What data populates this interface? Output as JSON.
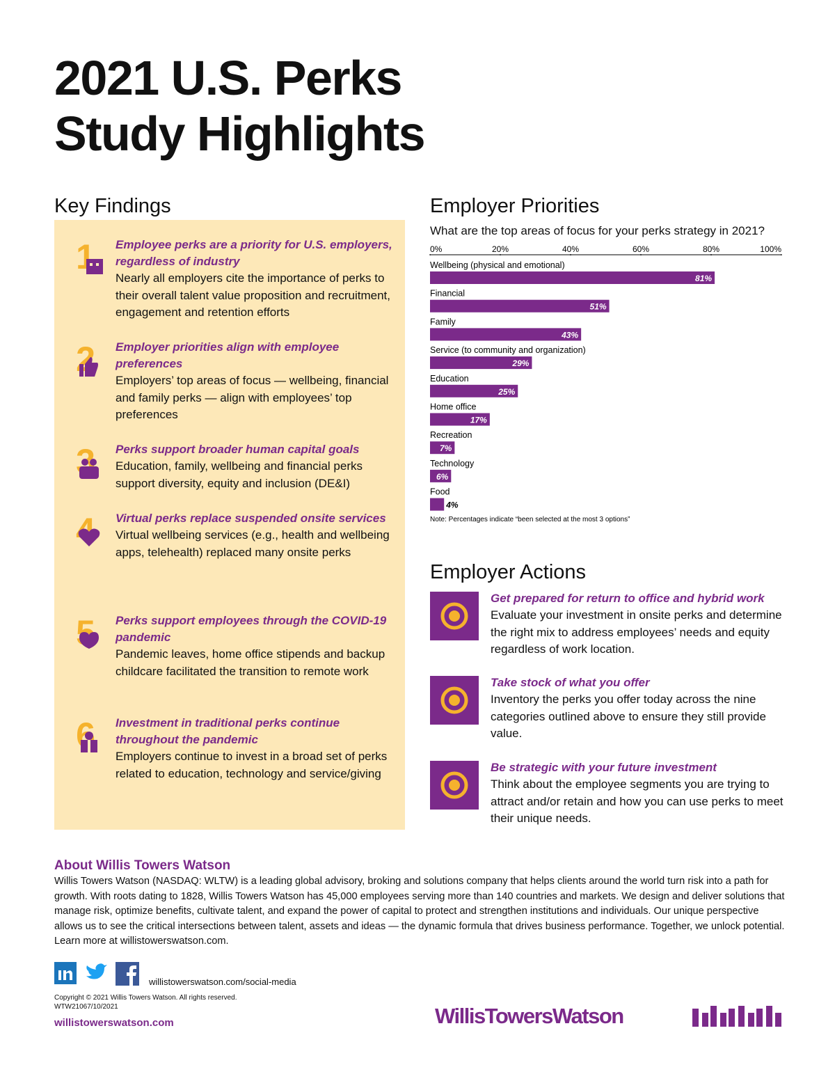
{
  "header": {
    "title": [
      "2021 U.S. Perks",
      "Study Highlights"
    ]
  },
  "key_findings": {
    "title": "Key Findings",
    "items": [
      {
        "number": "1",
        "heading": "Employee perks are a priority for U.S. employers, regardless of industry",
        "body": "Nearly all employers cite the importance of perks to their overall talent value proposition and recruitment, engagement and retention efforts"
      },
      {
        "number": "2",
        "heading": "Employer priorities align with employee preferences",
        "body": "Employers’ top areas of focus — wellbeing, financial and family perks — align with employees’ top preferences"
      },
      {
        "number": "3",
        "heading": "Perks support broader human capital goals",
        "body": "Education, family, wellbeing and financial perks support diversity, equity and inclusion (DE&I)"
      },
      {
        "number": "4",
        "heading": "Virtual perks replace suspended onsite services",
        "body": "Virtual wellbeing services (e.g., health and wellbeing apps, telehealth) replaced many onsite perks"
      },
      {
        "number": "5",
        "heading": "Perks support employees through the COVID-19 pandemic",
        "body": "Pandemic leaves, home office stipends and backup childcare facilitated the transition to remote work"
      },
      {
        "number": "6",
        "heading": "Investment in traditional perks continue throughout the pandemic",
        "body": "Employers continue to invest in a broad set of perks related to education, technology and service/giving"
      }
    ]
  },
  "employer_priorities": {
    "title": "Employer Priorities"
  },
  "chart_data": {
    "type": "bar",
    "orientation": "horizontal",
    "title": "What are the top areas of focus for your perks strategy in 2021?",
    "categories": [
      "Wellbeing (physical and emotional)",
      "Financial",
      "Family",
      "Service (to community and organization)",
      "Education",
      "Home office",
      "Recreation",
      "Technology",
      "Food"
    ],
    "values": [
      81,
      51,
      43,
      29,
      25,
      17,
      7,
      6,
      4
    ],
    "value_labels": [
      "81%",
      "51%",
      "43%",
      "29%",
      "25%",
      "17%",
      "7%",
      "6%",
      "4%"
    ],
    "color": "#7b2a8a",
    "xlim": [
      0,
      100
    ],
    "xticks": [
      {
        "value": 0,
        "label": "0%"
      },
      {
        "value": 20,
        "label": "20%"
      },
      {
        "value": 40,
        "label": "40%"
      },
      {
        "value": 60,
        "label": "60%"
      },
      {
        "value": 80,
        "label": "80%"
      },
      {
        "value": 100,
        "label": "100%"
      }
    ],
    "note": "Note: Percentages indicate “been selected at the most 3 options”"
  },
  "employer_actions": {
    "title": "Employer Actions",
    "items": [
      {
        "heading": "Get prepared for return to office and hybrid work",
        "body": "Evaluate your investment in onsite perks and determine the right mix to address employees’ needs and equity regardless of work location."
      },
      {
        "heading": "Take stock of what you offer",
        "body": "Inventory the perks you offer today across the nine categories outlined above to ensure they still provide value."
      },
      {
        "heading": "Be strategic with your future investment",
        "body": "Think about the employee segments you are trying to attract and/or retain and how you can use perks to meet their unique needs."
      }
    ]
  },
  "about": {
    "title": "About Willis Towers Watson",
    "body": "Willis Towers Watson (NASDAQ: WLTW) is a leading global advisory, broking and solutions company that helps clients around the world turn risk into a path for growth. With roots dating to 1828, Willis Towers Watson has 45,000 employees serving more than 140 countries and markets. We design and deliver solutions that manage risk, optimize benefits, cultivate talent, and expand the power of capital to protect and strengthen institutions and individuals. Our unique perspective allows us to see the critical intersections between talent, assets and ideas — the dynamic formula that drives business performance. Together, we unlock potential. Learn more at willistowerswatson.com."
  },
  "footer": {
    "social_url": "willistowerswatson.com/social-media",
    "copyright": "Copyright © 2021 Willis Towers Watson. All rights reserved.",
    "code": "WTW21067/10/2021",
    "website": "willistowerswatson.com",
    "logo": "WillisTowersWatson"
  }
}
